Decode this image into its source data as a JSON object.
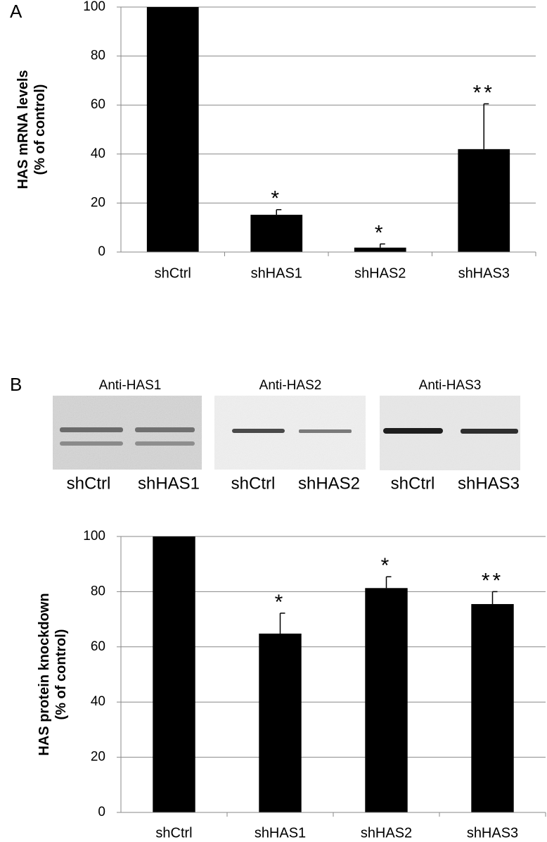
{
  "chart_data": [
    {
      "type": "bar",
      "panel_label": "A",
      "ylabel": [
        "HAS mRNA levels",
        "(% of control)"
      ],
      "categories": [
        "shCtrl",
        "shHAS1",
        "shHAS2",
        "shHAS3"
      ],
      "values": [
        100,
        15.2,
        1.8,
        42
      ],
      "errors": [
        null,
        2.1,
        1.5,
        18.5
      ],
      "annotations": [
        null,
        "*",
        "*",
        "**"
      ],
      "color": "#000000",
      "ylim": [
        0,
        100
      ],
      "yticks": [
        0,
        20,
        40,
        60,
        80,
        100
      ],
      "grid": true
    },
    {
      "type": "bar",
      "panel_label": "B",
      "ylabel": [
        "HAS protein knockdown",
        "(% of control)"
      ],
      "categories": [
        "shCtrl",
        "shHAS1",
        "shHAS2",
        "shHAS3"
      ],
      "values": [
        100,
        64.8,
        81.3,
        75.5
      ],
      "errors": [
        null,
        7.4,
        4.1,
        4.5
      ],
      "annotations": [
        null,
        "*",
        "*",
        "**"
      ],
      "color": "#000000",
      "ylim": [
        0,
        100
      ],
      "yticks": [
        0,
        20,
        40,
        60,
        80,
        100
      ],
      "grid": true
    }
  ],
  "blots": [
    {
      "title": "Anti-HAS1",
      "lanes": [
        "shCtrl",
        "shHAS1"
      ]
    },
    {
      "title": "Anti-HAS2",
      "lanes": [
        "shCtrl",
        "shHAS2"
      ]
    },
    {
      "title": "Anti-HAS3",
      "lanes": [
        "shCtrl",
        "shHAS3"
      ]
    }
  ]
}
